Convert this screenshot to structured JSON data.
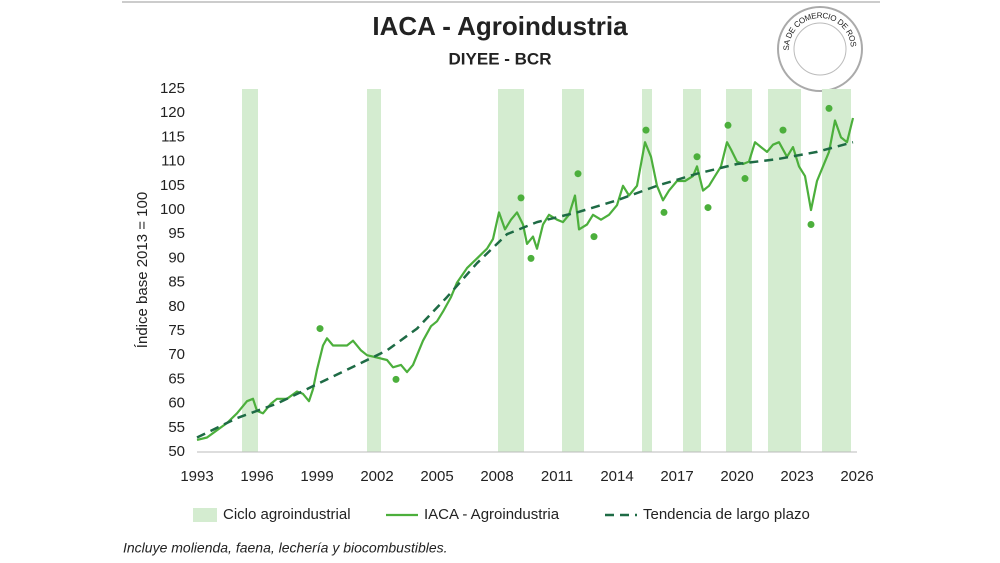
{
  "chart_data": {
    "type": "line",
    "title": "IACA - Agroindustria",
    "subtitle": "DIYEE - BCR",
    "logo_text": "BOLSA DE COMERCIO DE ROSARIO",
    "y_label": "Índice base 2013 = 100",
    "footnote": "Incluye molienda, faena, lechería y biocombustibles.",
    "xlim": [
      1993,
      2026
    ],
    "xticks": [
      1993,
      1996,
      1999,
      2002,
      2005,
      2008,
      2011,
      2014,
      2017,
      2020,
      2023,
      2026
    ],
    "ylim": [
      50,
      125
    ],
    "yticks": [
      50,
      55,
      60,
      65,
      70,
      75,
      80,
      85,
      90,
      95,
      100,
      105,
      110,
      115,
      120,
      125
    ],
    "cycles": {
      "name": "Ciclo agroindustrial",
      "color": "#d4ecd0",
      "ranges": [
        [
          1995.25,
          1996.05
        ],
        [
          2001.5,
          2002.2
        ],
        [
          2008.05,
          2009.35
        ],
        [
          2011.25,
          2012.35
        ],
        [
          2015.25,
          2015.75
        ],
        [
          2017.3,
          2018.2
        ],
        [
          2019.45,
          2020.75
        ],
        [
          2021.55,
          2023.2
        ],
        [
          2024.25,
          2025.7
        ]
      ]
    },
    "series": [
      {
        "name": "IACA - Agroindustria",
        "color": "#4caf3c",
        "dash": false,
        "x": [
          1993.0,
          1993.5,
          1994.0,
          1994.5,
          1995.0,
          1995.5,
          1995.8,
          1996.0,
          1996.3,
          1996.7,
          1997.0,
          1997.5,
          1998.0,
          1998.3,
          1998.6,
          1998.8,
          1999.0,
          1999.3,
          1999.5,
          1999.8,
          2000.0,
          2000.5,
          2000.8,
          2001.2,
          2001.5,
          2002.0,
          2002.5,
          2002.8,
          2003.2,
          2003.5,
          2003.8,
          2004.0,
          2004.3,
          2004.7,
          2005.0,
          2005.3,
          2005.7,
          2006.0,
          2006.5,
          2007.0,
          2007.5,
          2007.8,
          2008.1,
          2008.4,
          2008.7,
          2009.0,
          2009.3,
          2009.5,
          2009.8,
          2010.0,
          2010.3,
          2010.6,
          2011.0,
          2011.3,
          2011.6,
          2011.9,
          2012.1,
          2012.5,
          2012.8,
          2013.2,
          2013.6,
          2014.0,
          2014.3,
          2014.6,
          2015.0,
          2015.4,
          2015.7,
          2016.0,
          2016.3,
          2016.6,
          2017.0,
          2017.4,
          2017.8,
          2018.0,
          2018.3,
          2018.6,
          2018.9,
          2019.2,
          2019.5,
          2019.7,
          2020.0,
          2020.3,
          2020.6,
          2020.9,
          2021.2,
          2021.5,
          2021.8,
          2022.1,
          2022.5,
          2022.8,
          2023.1,
          2023.4,
          2023.7,
          2024.0,
          2024.3,
          2024.6,
          2024.9,
          2025.2,
          2025.5,
          2025.8
        ],
        "values": [
          52.5,
          53,
          54.5,
          56,
          58,
          60.5,
          61,
          58.5,
          58,
          60,
          61,
          61,
          62.5,
          62,
          60.5,
          63,
          67,
          72,
          73.5,
          72,
          72,
          72,
          73,
          71,
          70,
          69.5,
          69,
          67.5,
          68,
          66.5,
          68,
          70,
          73,
          76,
          77,
          79,
          82,
          85,
          88,
          90,
          92,
          94,
          99.5,
          96,
          98,
          99.5,
          97,
          93,
          94.5,
          92,
          97,
          99,
          98,
          97.5,
          99,
          103,
          96,
          97,
          99,
          98,
          99,
          101,
          105,
          103,
          105,
          114,
          111,
          105,
          102,
          104,
          106,
          106,
          107,
          109,
          104,
          105,
          107,
          109,
          114,
          112.5,
          110,
          109.5,
          110,
          114,
          113,
          112,
          113.5,
          114,
          111,
          113,
          109,
          107,
          100,
          106,
          109,
          112,
          118.5,
          115,
          114,
          119
        ]
      },
      {
        "name": "Tendencia de largo plazo",
        "color": "#1e6b45",
        "dash": true,
        "x": [
          1993,
          1995,
          1997,
          1999,
          2001,
          2002.5,
          2004,
          2005.5,
          2007,
          2008.5,
          2010,
          2012,
          2014,
          2016,
          2018,
          2020,
          2022,
          2024,
          2025.8
        ],
        "values": [
          53,
          57,
          60,
          64,
          68,
          71,
          75.5,
          82,
          89,
          95,
          97.5,
          99.5,
          102,
          105,
          107.5,
          109.5,
          110.5,
          112,
          114
        ]
      }
    ],
    "turning_points": {
      "color": "#4caf3c",
      "x": [
        1999.15,
        2002.95,
        2009.2,
        2009.7,
        2012.05,
        2012.85,
        2015.45,
        2016.35,
        2018.0,
        2018.55,
        2019.55,
        2020.4,
        2022.3,
        2023.7,
        2024.6
      ],
      "values": [
        75.5,
        65,
        102.5,
        90,
        107.5,
        94.5,
        116.5,
        99.5,
        111,
        100.5,
        117.5,
        106.5,
        116.5,
        97,
        121
      ]
    }
  }
}
